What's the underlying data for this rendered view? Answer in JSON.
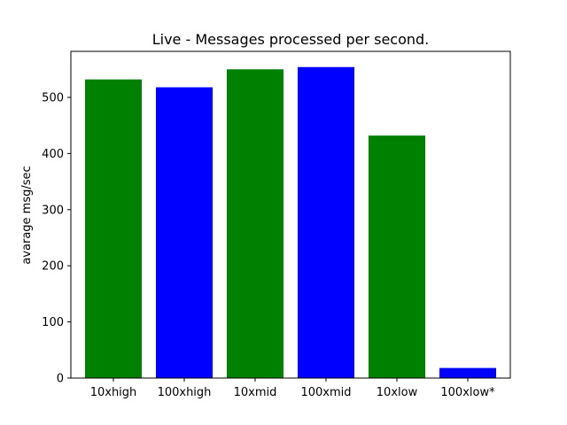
{
  "chart_data": {
    "type": "bar",
    "title": "Live - Messages processed per second.",
    "xlabel": "",
    "ylabel": "avarage msg/sec",
    "categories": [
      "10xhigh",
      "100xhigh",
      "10xmid",
      "100xmid",
      "10xlow",
      "100xlow*"
    ],
    "values": [
      532,
      518,
      550,
      554,
      432,
      18
    ],
    "colors": [
      "#008000",
      "#0000ff",
      "#008000",
      "#0000ff",
      "#008000",
      "#0000ff"
    ],
    "ylim": [
      0,
      582
    ],
    "yticks": [
      0,
      100,
      200,
      300,
      400,
      500
    ],
    "grid": false,
    "legend": "none"
  }
}
